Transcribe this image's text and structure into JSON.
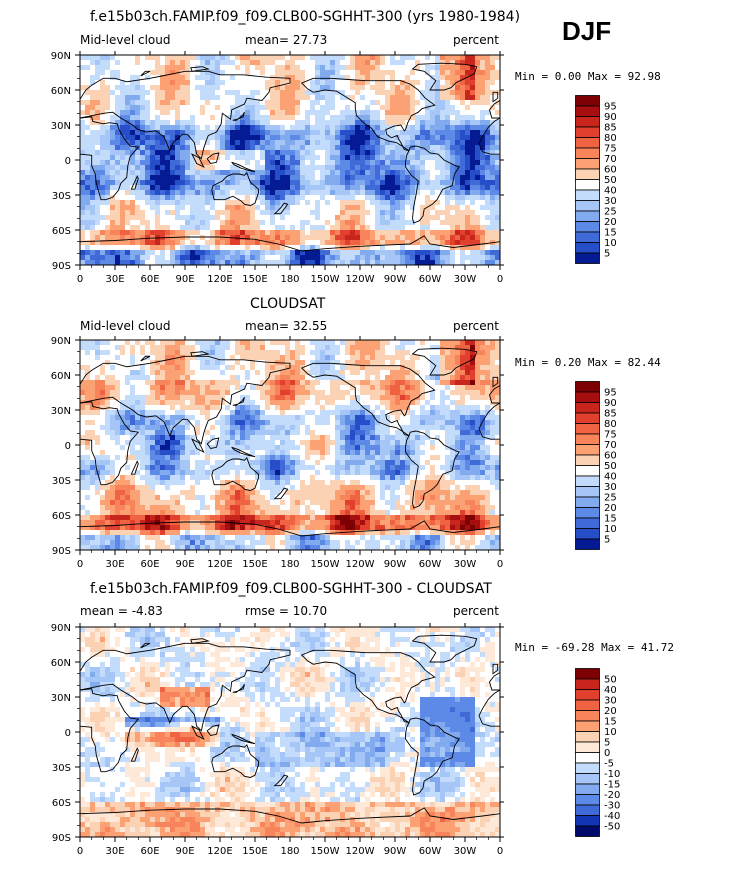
{
  "season": "DJF",
  "colors": {
    "red": [
      "#fee5d0",
      "#fdd0b0",
      "#fcbb92",
      "#fba174",
      "#f7845a",
      "#ef6242",
      "#e0402d",
      "#c8261c",
      "#a60e10",
      "#7d0003"
    ],
    "blue": [
      "#e4efff",
      "#c4dcfb",
      "#a5c6f6",
      "#82aaee",
      "#5d8ae6",
      "#3f6ad8",
      "#264ec8",
      "#1235b3",
      "#041b94",
      "#000a6b"
    ]
  },
  "xticks": [
    "0",
    "30E",
    "60E",
    "90E",
    "120E",
    "150E",
    "180",
    "150W",
    "120W",
    "90W",
    "60W",
    "30W",
    "0"
  ],
  "yticks": [
    "90N",
    "60N",
    "30N",
    "0",
    "30S",
    "60S",
    "90S"
  ],
  "panels": [
    {
      "title": "f.e15b03ch.FAMIP.f09_f09.CLB00-SGHHT-300 (yrs 1980-1984)",
      "left_label": "Mid-level cloud",
      "center_label": "mean=   27.73",
      "right_label": "percent",
      "minmax": "Min =    0.00 Max =   92.98",
      "colorbar_labels": [
        "95",
        "90",
        "85",
        "80",
        "75",
        "70",
        "60",
        "50",
        "40",
        "30",
        "25",
        "20",
        "15",
        "10",
        "5"
      ],
      "colorbar_colors": [
        "#7d0003",
        "#a60e10",
        "#c8261c",
        "#e0402d",
        "#ef6242",
        "#f7845a",
        "#fba174",
        "#fcd2b4",
        "#ffffff",
        "#c4dcfb",
        "#a5c6f6",
        "#82aaee",
        "#5d8ae6",
        "#3f6ad8",
        "#264ec8",
        "#041b94"
      ]
    },
    {
      "title": "CLOUDSAT",
      "left_label": "Mid-level cloud",
      "center_label": "mean=   32.55",
      "right_label": "percent",
      "minmax": "Min =    0.20 Max =   82.44",
      "colorbar_labels": [
        "95",
        "90",
        "85",
        "80",
        "75",
        "70",
        "60",
        "50",
        "40",
        "30",
        "25",
        "20",
        "15",
        "10",
        "5"
      ],
      "colorbar_colors": [
        "#7d0003",
        "#a60e10",
        "#c8261c",
        "#e0402d",
        "#ef6242",
        "#f7845a",
        "#fba174",
        "#fcd2b4",
        "#ffffff",
        "#c4dcfb",
        "#a5c6f6",
        "#82aaee",
        "#5d8ae6",
        "#3f6ad8",
        "#264ec8",
        "#041b94"
      ]
    },
    {
      "title": "f.e15b03ch.FAMIP.f09_f09.CLB00-SGHHT-300 - CLOUDSAT",
      "left_label": "mean =   -4.83",
      "center_label": "rmse =   10.70",
      "right_label": "percent",
      "minmax": "Min = -69.28 Max =   41.72",
      "colorbar_labels": [
        "50",
        "40",
        "30",
        "20",
        "15",
        "10",
        "5",
        "0",
        "-5",
        "-10",
        "-15",
        "-20",
        "-30",
        "-40",
        "-50"
      ],
      "colorbar_colors": [
        "#7d0003",
        "#c8261c",
        "#e0402d",
        "#ef6242",
        "#f7845a",
        "#fba174",
        "#fcd2b4",
        "#fee8d8",
        "#ffffff",
        "#c4dcfb",
        "#a5c6f6",
        "#82aaee",
        "#5d8ae6",
        "#3f6ad8",
        "#1235b3",
        "#000a6b"
      ]
    }
  ]
}
